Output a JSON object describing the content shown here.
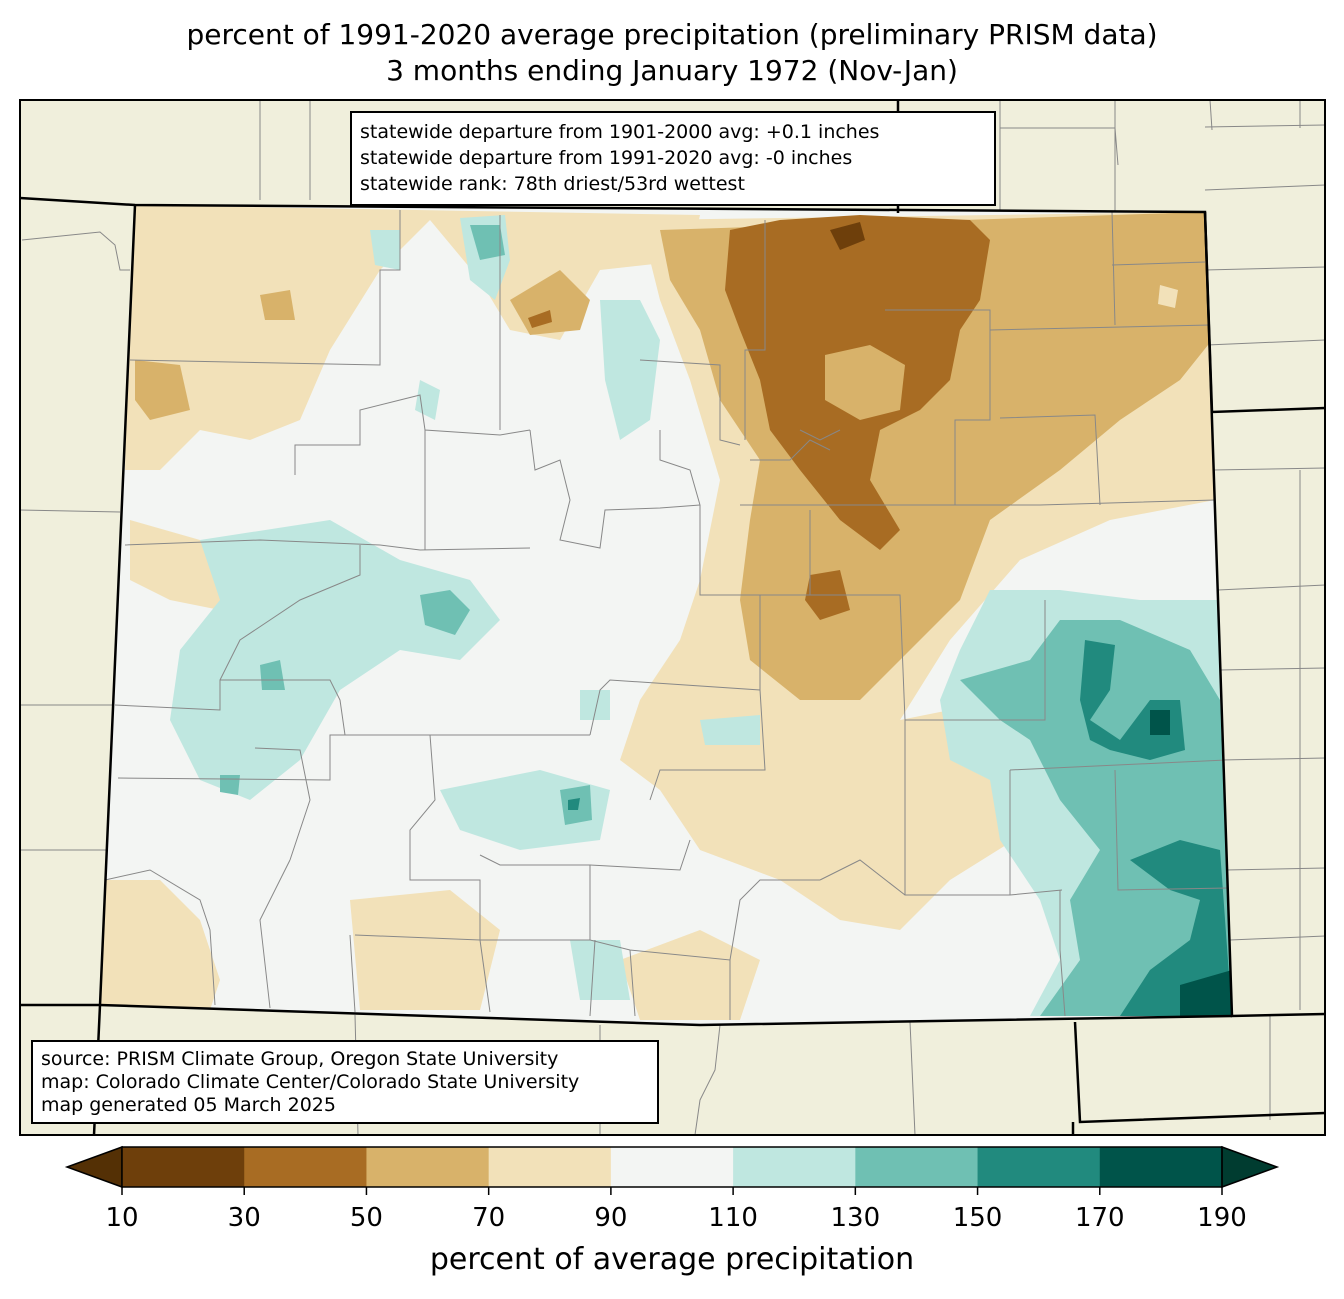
{
  "title": {
    "line1": "percent of 1991-2020 average precipitation (preliminary PRISM data)",
    "line2": "3 months ending January 1972 (Nov-Jan)"
  },
  "stats": {
    "line1": "statewide departure from 1901-2000 avg: +0.1 inches",
    "line2": "statewide departure from 1991-2020 avg: -0 inches",
    "line3": "statewide rank: 78th driest/53rd wettest"
  },
  "source": {
    "line1": "source: PRISM Climate Group, Oregon State University",
    "line2": "map: Colorado Climate Center/Colorado State University",
    "line3": "map generated 05 March 2025"
  },
  "colorbar": {
    "label": "percent of average precipitation",
    "ticks": [
      "10",
      "30",
      "50",
      "70",
      "90",
      "110",
      "130",
      "150",
      "170",
      "190"
    ],
    "colors": [
      "#543005",
      "#6e3f0b",
      "#a86c23",
      "#d8b26a",
      "#f2e1b9",
      "#f3f5f3",
      "#bfe7e0",
      "#6fc0b3",
      "#218a7e",
      "#00544a",
      "#003c30"
    ]
  },
  "colors": {
    "background_land": "#f0efdc",
    "state_border": "#000000",
    "county_line": "#888888"
  }
}
